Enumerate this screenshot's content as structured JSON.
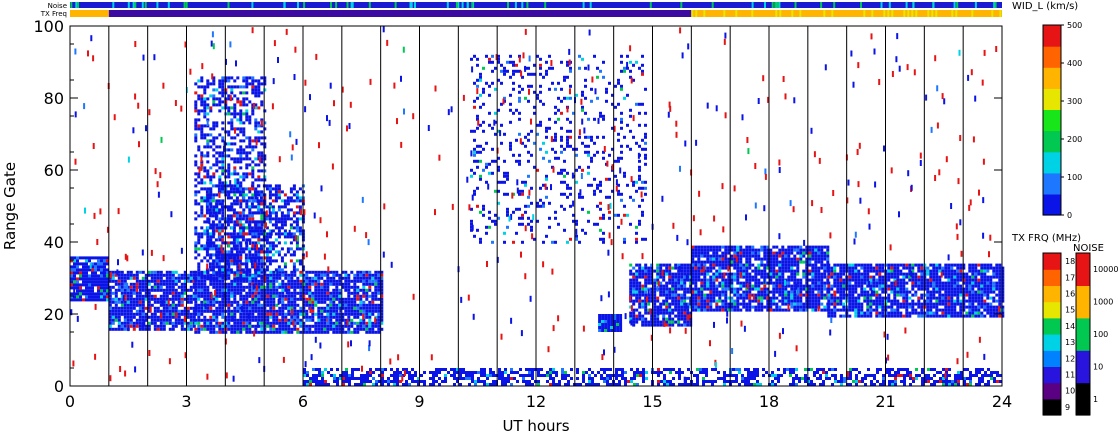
{
  "chart_data": {
    "type": "heatmap",
    "title": "",
    "xlabel": "UT hours",
    "ylabel": "Range Gate",
    "xlim": [
      0,
      24
    ],
    "ylim": [
      0,
      100
    ],
    "x_ticks": [
      "0",
      "3",
      "6",
      "9",
      "12",
      "15",
      "18",
      "21",
      "24"
    ],
    "y_ticks": [
      "0",
      "20",
      "40",
      "60",
      "80",
      "100"
    ],
    "top_bars": {
      "noise_label": "Noise",
      "txfreq_label": "TX Freq"
    },
    "colorbar_main": {
      "title": "WID_L (km/s)",
      "range": [
        0,
        500
      ],
      "ticks": [
        "0",
        "100",
        "200",
        "300",
        "400",
        "500"
      ],
      "colors": [
        "#0a14e6",
        "#1e78ff",
        "#00d2e6",
        "#00c850",
        "#19e619",
        "#e6e600",
        "#ffb400",
        "#ff6400",
        "#e61414"
      ]
    },
    "colorbar_txfreq": {
      "title": "TX FRQ (MHz)",
      "ticks": [
        "9",
        "10",
        "11",
        "12",
        "13",
        "14",
        "15",
        "16",
        "17",
        "18"
      ],
      "colors": [
        "#000000",
        "#5a0082",
        "#2814dc",
        "#0082ff",
        "#00d2e6",
        "#00c850",
        "#e6e600",
        "#ffb400",
        "#ff6400",
        "#e61414"
      ]
    },
    "colorbar_noise": {
      "title": "NOISE",
      "ticks": [
        "1",
        "10",
        "100",
        "1000",
        "10000"
      ],
      "colors": [
        "#000000",
        "#2814dc",
        "#00c850",
        "#ffb400",
        "#e61414"
      ]
    },
    "hour_markers": [
      1,
      2,
      3,
      4,
      5,
      6,
      7,
      8,
      9,
      10,
      11,
      12,
      13,
      14,
      15,
      16,
      17,
      18,
      19,
      20,
      21,
      22,
      23
    ],
    "regions": [
      {
        "name": "main-band-early",
        "x": [
          0,
          1
        ],
        "y": [
          24,
          36
        ],
        "density": 0.9
      },
      {
        "name": "main-band-dip",
        "x": [
          1,
          3.2
        ],
        "y": [
          16,
          32
        ],
        "density": 0.85
      },
      {
        "name": "main-band-mid",
        "x": [
          3.2,
          8
        ],
        "y": [
          15,
          32
        ],
        "density": 0.85
      },
      {
        "name": "main-band-dusk",
        "x": [
          14.4,
          16
        ],
        "y": [
          17,
          34
        ],
        "density": 0.85
      },
      {
        "name": "main-band-late",
        "x": [
          16,
          19.5
        ],
        "y": [
          21,
          39
        ],
        "density": 0.85
      },
      {
        "name": "main-band-night",
        "x": [
          19.5,
          24
        ],
        "y": [
          19,
          34
        ],
        "density": 0.85
      },
      {
        "name": "upper-band",
        "x": [
          3.5,
          6
        ],
        "y": [
          32,
          56
        ],
        "density": 0.55
      },
      {
        "name": "ground-band",
        "x": [
          6,
          24
        ],
        "y": [
          0,
          5
        ],
        "density": 0.55
      },
      {
        "name": "midday-scatter",
        "x": [
          10.3,
          14.8
        ],
        "y": [
          40,
          92
        ],
        "density": 0.16
      },
      {
        "name": "blob",
        "x": [
          13.6,
          14.2
        ],
        "y": [
          15,
          20
        ],
        "density": 1.0
      },
      {
        "name": "rising-streak",
        "x": [
          3.2,
          5
        ],
        "y": [
          30,
          86
        ],
        "density": 0.5
      }
    ]
  }
}
